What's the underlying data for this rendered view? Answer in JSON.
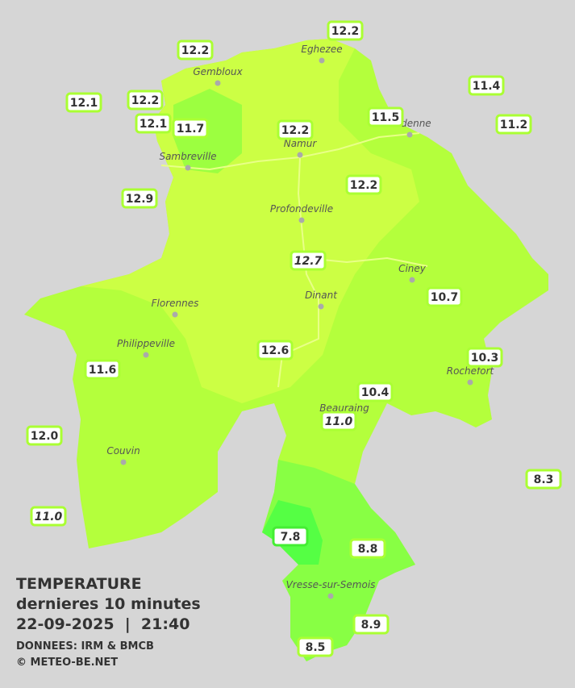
{
  "stations": [
    "12.2",
    "12.2",
    "12.1",
    "12.2",
    "12.1",
    "11.7",
    "12.2",
    "11.5",
    "11.4",
    "11.2",
    "12.9",
    "12.2",
    "12.7",
    "10.7",
    "12.6",
    "10.3",
    "11.6",
    "10.4",
    "11.0",
    "12.0",
    "8.3",
    "11.0",
    "7.8",
    "8.8",
    "8.9",
    "8.5"
  ],
  "towns": [
    "Eghezee",
    "Gembloux",
    "Andenne",
    "Namur",
    "Sambreville",
    "Profondeville",
    "Ciney",
    "Dinant",
    "Florennes",
    "Philippeville",
    "Rochefort",
    "Beauraing",
    "Couvin",
    "Vresse-sur-Semois"
  ],
  "legend": {
    "title": "TEMPERATURE",
    "subtitle": "dernieres 10 minutes",
    "datetime": "22-09-2025  |  21:40",
    "source": "DONNEES: IRM & BMCB",
    "copyright": "© METEO-BE.NET"
  }
}
